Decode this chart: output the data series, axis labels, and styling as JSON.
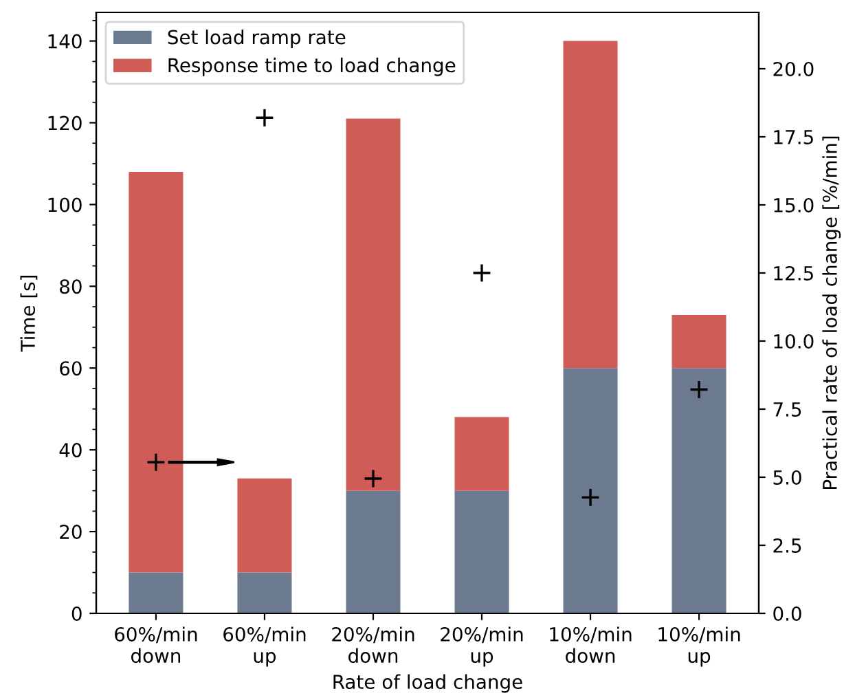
{
  "chart_data": {
    "type": "bar",
    "stacked": true,
    "xlabel": "Rate of load change",
    "ylabel": "Time [s]",
    "y2label": "Practical rate of load change [%/min]",
    "categories": [
      "60%/min\ndown",
      "60%/min\nup",
      "20%/min\ndown",
      "20%/min\nup",
      "10%/min\ndown",
      "10%/min\nup"
    ],
    "series": [
      {
        "name": "Set load ramp rate",
        "color": "#6b7a8f",
        "values": [
          10,
          10,
          30,
          30,
          60,
          60
        ]
      },
      {
        "name": "Response time to load change",
        "color": "#d05c58",
        "values": [
          98,
          23,
          91,
          18,
          80,
          13
        ]
      },
      {
        "type": "scatter",
        "axis": "y2",
        "color": "#000000",
        "marker": "cross",
        "values": [
          5.55,
          18.2,
          4.95,
          12.5,
          4.26,
          8.22
        ]
      }
    ],
    "ylim": [
      0,
      147
    ],
    "yticks": [
      0,
      20,
      40,
      60,
      80,
      100,
      120,
      140
    ],
    "y2lim": [
      0,
      22.07
    ],
    "y2ticks": [
      {
        "value": 0,
        "label": "0.0"
      },
      2.5,
      {
        "value": 5,
        "label": "5.0"
      },
      7.5,
      {
        "value": 10,
        "label": "10.0"
      },
      12.5,
      {
        "value": 15,
        "label": "15.0"
      },
      17.5,
      {
        "value": 20,
        "label": "20.0"
      }
    ],
    "grid": false,
    "legend": "top left"
  }
}
